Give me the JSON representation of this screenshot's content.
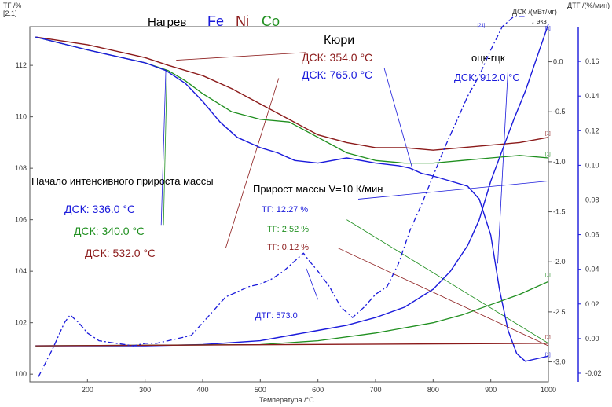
{
  "chart_data": {
    "type": "line",
    "title": "Нагрев",
    "legend": [
      {
        "label": "Fe",
        "color": "#1a1adb"
      },
      {
        "label": "Ni",
        "color": "#8b1a1a"
      },
      {
        "label": "Co",
        "color": "#1f8f1f"
      }
    ],
    "xlabel": "Температура /°С",
    "ylabel_left": "ТГ /%",
    "ylabel_left_sub": "[2.1]",
    "ylabel_dsc": "ДСК /(мВт/мг)",
    "ylabel_dsc_sub": "↓ экз",
    "ylabel_dtg": "ДТГ /(%/мин)",
    "xlim": [
      100,
      1000
    ],
    "ylim_tg": [
      99.7,
      113.5
    ],
    "ylim_dsc": [
      -3.2,
      0.35
    ],
    "ylim_dtg": [
      -0.025,
      0.18
    ],
    "xticks": [
      200,
      300,
      400,
      500,
      600,
      700,
      800,
      900,
      1000
    ],
    "yticks_tg": [
      100,
      102,
      104,
      106,
      108,
      110,
      112
    ],
    "yticks_dsc": [
      0.0,
      -0.5,
      -1.0,
      -1.5,
      -2.0,
      -2.5,
      -3.0
    ],
    "yticks_dsc_labels": [
      "0.0",
      "-0.5",
      "-1.0",
      "-1.5",
      "-2.0",
      "-2.5",
      "-3.0"
    ],
    "yticks_dtg": [
      0.16,
      0.14,
      0.12,
      0.1,
      0.08,
      0.06,
      0.04,
      0.02,
      0.0,
      -0.02
    ],
    "yticks_dtg_labels": [
      "0.16",
      "0.14",
      "0.12",
      "0.10",
      "0.08",
      "0.06",
      "0.04",
      "0.02",
      "0.00",
      "-0.02"
    ],
    "series": [
      {
        "name": "ДСК Ni",
        "axis": "tg",
        "color": "#8b1a1a",
        "width": 1.4,
        "dash": "",
        "x": [
          110,
          200,
          300,
          340,
          400,
          450,
          500,
          550,
          600,
          650,
          700,
          750,
          800,
          850,
          900,
          950,
          1000
        ],
        "y": [
          113.1,
          112.8,
          112.3,
          112.0,
          111.6,
          111.1,
          110.5,
          109.9,
          109.3,
          109.0,
          108.8,
          108.8,
          108.7,
          108.8,
          108.9,
          109.0,
          109.2
        ]
      },
      {
        "name": "ДСК Co",
        "axis": "tg",
        "color": "#1f8f1f",
        "width": 1.3,
        "dash": "",
        "x": [
          110,
          200,
          300,
          340,
          370,
          400,
          450,
          500,
          550,
          600,
          650,
          700,
          750,
          800,
          850,
          900,
          950,
          1000
        ],
        "y": [
          113.1,
          112.6,
          112.1,
          111.8,
          111.4,
          110.9,
          110.2,
          109.9,
          109.8,
          109.2,
          108.6,
          108.3,
          108.2,
          108.2,
          108.3,
          108.4,
          108.5,
          108.4
        ]
      },
      {
        "name": "ДСК Fe",
        "axis": "tg",
        "color": "#1a1adb",
        "width": 1.4,
        "dash": "",
        "x": [
          110,
          200,
          300,
          336,
          370,
          400,
          430,
          460,
          500,
          530,
          560,
          600,
          650,
          700,
          740,
          760,
          780,
          800,
          830,
          860,
          880,
          900,
          915,
          930,
          945,
          960,
          980,
          1000
        ],
        "y": [
          113.1,
          112.6,
          112.1,
          111.8,
          111.3,
          110.6,
          109.8,
          109.2,
          108.8,
          108.6,
          108.3,
          108.2,
          108.4,
          108.2,
          108.1,
          108.0,
          107.8,
          107.7,
          107.5,
          107.3,
          106.8,
          105.4,
          103.3,
          101.7,
          100.8,
          100.5,
          100.6,
          100.7
        ]
      },
      {
        "name": "ТГ Fe",
        "axis": "tg",
        "color": "#1a1adb",
        "width": 1.4,
        "dash": "",
        "x": [
          110,
          300,
          400,
          500,
          550,
          600,
          650,
          700,
          750,
          800,
          830,
          860,
          880,
          900,
          920,
          940,
          960,
          980,
          1000
        ],
        "y": [
          101.1,
          101.1,
          101.15,
          101.3,
          101.5,
          101.7,
          101.9,
          102.2,
          102.6,
          103.3,
          104.0,
          105.0,
          106.0,
          107.5,
          108.7,
          109.9,
          111.0,
          112.3,
          113.6
        ]
      },
      {
        "name": "ТГ Co",
        "axis": "tg",
        "color": "#1f8f1f",
        "width": 1.3,
        "dash": "",
        "x": [
          110,
          500,
          600,
          700,
          800,
          850,
          900,
          950,
          1000
        ],
        "y": [
          101.1,
          101.15,
          101.3,
          101.6,
          102.0,
          102.3,
          102.7,
          103.1,
          103.6
        ]
      },
      {
        "name": "ТГ Ni",
        "axis": "tg",
        "color": "#8b1a1a",
        "width": 1.3,
        "dash": "",
        "x": [
          110,
          1000
        ],
        "y": [
          101.1,
          101.2
        ]
      },
      {
        "name": "ДТГ Fe",
        "axis": "tg",
        "color": "#1a1adb",
        "width": 1.3,
        "dash": "7,3,2,3",
        "x": [
          115,
          140,
          160,
          170,
          185,
          200,
          220,
          250,
          280,
          300,
          320,
          340,
          360,
          380,
          400,
          420,
          440,
          460,
          480,
          500,
          520,
          540,
          560,
          575,
          585,
          600,
          620,
          640,
          660,
          680,
          700,
          720,
          740,
          760,
          780,
          800,
          820,
          840,
          860,
          880,
          900,
          920,
          940,
          960
        ],
        "y": [
          99.9,
          101.0,
          102.0,
          102.3,
          102.0,
          101.6,
          101.3,
          101.2,
          101.1,
          101.2,
          101.2,
          101.3,
          101.4,
          101.5,
          102.0,
          102.5,
          103.0,
          103.2,
          103.4,
          103.5,
          103.7,
          104.0,
          104.4,
          104.7,
          104.4,
          104.0,
          103.4,
          102.6,
          102.2,
          102.6,
          103.1,
          103.4,
          104.3,
          105.6,
          106.6,
          107.7,
          108.8,
          109.8,
          110.8,
          111.6,
          112.6,
          113.5,
          113.9,
          113.9
        ]
      }
    ],
    "connectors": [
      {
        "color": "#1f8f1f",
        "from": [
          338,
          111.8
        ],
        "to": [
          332,
          105.8
        ]
      },
      {
        "color": "#1a1adb",
        "from": [
          336,
          111.8
        ],
        "to": [
          328,
          105.8
        ]
      },
      {
        "color": "#8b1a1a",
        "from": [
          532,
          111.5
        ],
        "to": [
          440,
          104.9
        ]
      },
      {
        "color": "#8b1a1a",
        "from": [
          354,
          112.2
        ],
        "to": [
          580,
          112.5
        ]
      },
      {
        "color": "#1a1adb",
        "from": [
          765,
          107.9
        ],
        "to": [
          715,
          111.9
        ]
      },
      {
        "color": "#1a1adb",
        "from": [
          912,
          104.3
        ],
        "to": [
          930,
          111.9
        ]
      },
      {
        "color": "#1a1adb",
        "from": [
          670,
          106.8
        ],
        "to": [
          1000,
          107.5
        ]
      },
      {
        "color": "#1f8f1f",
        "from": [
          650,
          106.0
        ],
        "to": [
          1000,
          101.2
        ]
      },
      {
        "color": "#8b1a1a",
        "from": [
          635,
          104.9
        ],
        "to": [
          1000,
          101.1
        ]
      },
      {
        "color": "#1a1adb",
        "from": [
          600,
          102.9
        ],
        "to": [
          580,
          104.1
        ]
      }
    ],
    "markers": [
      {
        "x": 1000,
        "y": 113.4,
        "color": "#1a1adb",
        "label": "[1]"
      },
      {
        "x": 1000,
        "y": 109.3,
        "color": "#8b1a1a",
        "label": "[1]"
      },
      {
        "x": 1000,
        "y": 108.5,
        "color": "#1f8f1f",
        "label": "[1]"
      },
      {
        "x": 1000,
        "y": 103.8,
        "color": "#1f8f1f",
        "label": "[1]"
      },
      {
        "x": 1000,
        "y": 101.4,
        "color": "#8b1a1a",
        "label": "[1]"
      },
      {
        "x": 1000,
        "y": 100.7,
        "color": "#1a1adb",
        "label": "[1]"
      },
      {
        "x": 882,
        "y": 113.5,
        "color": "#1a1adb",
        "label": "[21]"
      }
    ],
    "annotations": {
      "kyuri": "Кюри",
      "dsk_354": "ДСК: 354.0 °C",
      "dsk_765": "ДСК: 765.0 °C",
      "otsk_gtsk": "оцк-гцк",
      "dsk_912": "ДСК: 912.0 °C",
      "nachalo": "Начало интенсивного прироста массы",
      "dsk_336": "ДСК: 336.0 °C",
      "dsk_340": "ДСК: 340.0 °C",
      "dsk_532": "ДСК: 532.0 °C",
      "prirost": "Прирост массы V=10 К/мин",
      "tg_1227": "ТГ: 12.27 %",
      "tg_252": "ТГ: 2.52 %",
      "tg_012": "ТГ: 0.12 %",
      "dtg_573": "ДТГ: 573.0"
    }
  }
}
